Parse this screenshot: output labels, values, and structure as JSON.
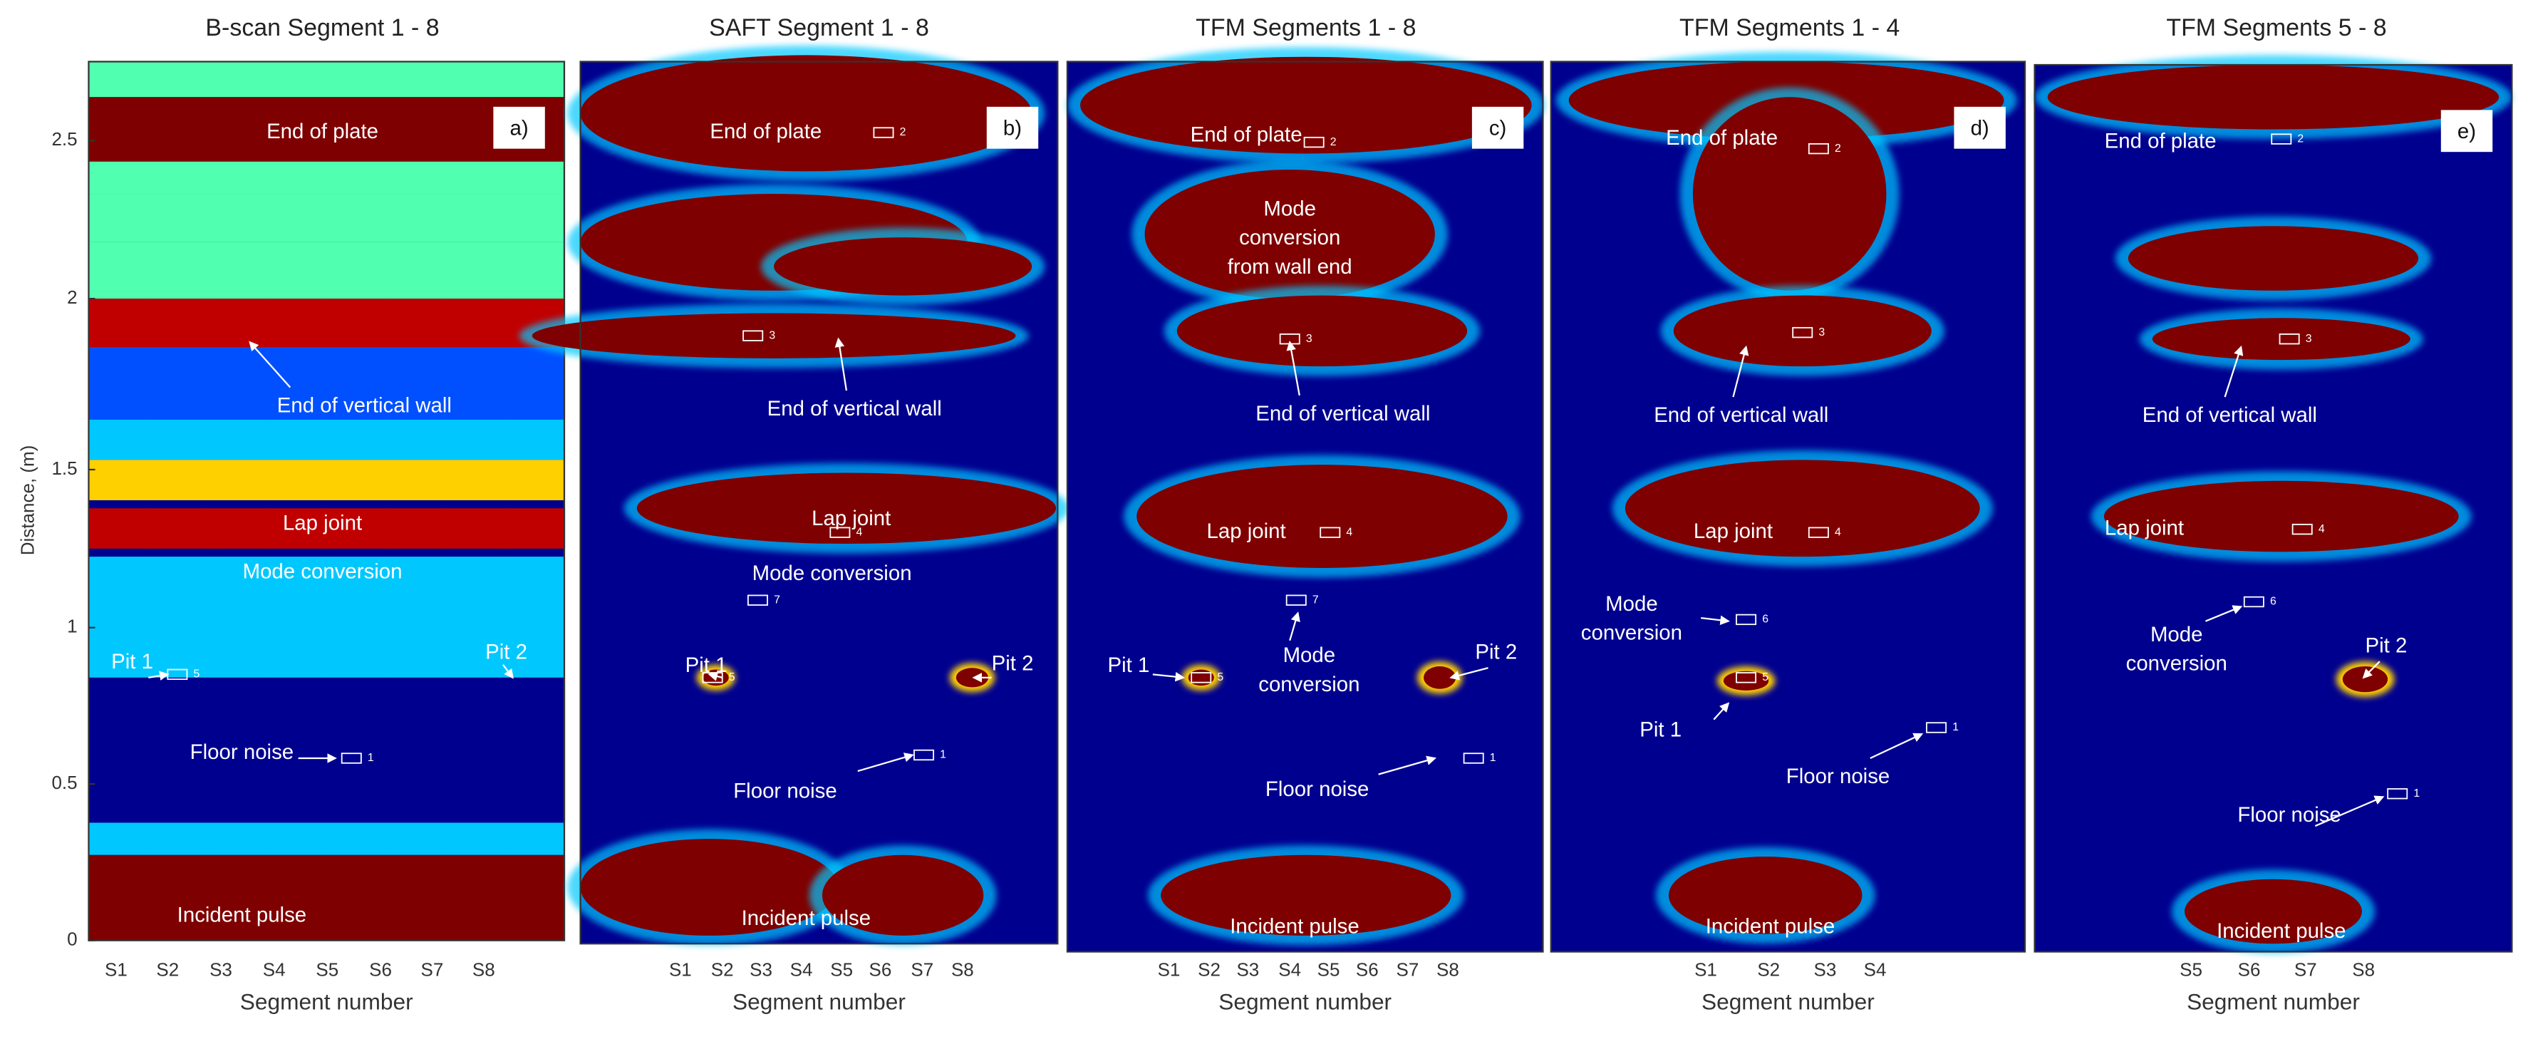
{
  "y_label": "Distance, (m)",
  "y_ticks": [
    "0",
    "0.5",
    "1",
    "1.5",
    "2",
    "2.5"
  ],
  "panels": [
    {
      "title": "B-scan Segment 1 - 8",
      "panel_label": "a)",
      "x_label": "Segment number",
      "categories": [
        "S1",
        "S2",
        "S3",
        "S4",
        "S5",
        "S6",
        "S7",
        "S8"
      ],
      "annotations": [
        [
          "End of plate"
        ],
        [
          "End of vertical wall"
        ],
        [
          "Lap joint"
        ],
        [
          "Mode conversion"
        ],
        [
          "Pit 1"
        ],
        [
          "Pit 2"
        ],
        [
          "Floor noise"
        ],
        [
          "Incident pulse"
        ]
      ],
      "markers": [
        "5",
        "1"
      ]
    },
    {
      "title": "SAFT Segment 1 - 8",
      "panel_label": "b)",
      "x_label": "Segment number",
      "categories": [
        "S1",
        "S2",
        "S3",
        "S4",
        "S5",
        "S6",
        "S7",
        "S8"
      ],
      "annotations": [
        [
          "End of plate"
        ],
        [
          "End of vertical wall"
        ],
        [
          "Lap joint"
        ],
        [
          "Mode conversion"
        ],
        [
          "Pit 1"
        ],
        [
          "Pit 2"
        ],
        [
          "Floor noise"
        ],
        [
          "Incident pulse"
        ]
      ],
      "markers": [
        "2",
        "3",
        "4",
        "7",
        "5",
        "1"
      ]
    },
    {
      "title": "TFM Segments 1 - 8",
      "panel_label": "c)",
      "x_label": "Segment number",
      "categories": [
        "S1",
        "S2",
        "S3",
        "S4",
        "S5",
        "S6",
        "S7",
        "S8"
      ],
      "annotations": [
        [
          "End of plate"
        ],
        [
          "Mode",
          "conversion",
          "from wall end"
        ],
        [
          "End of vertical wall"
        ],
        [
          "Lap joint"
        ],
        [
          "Mode",
          "conversion"
        ],
        [
          "Pit 1"
        ],
        [
          "Pit 2"
        ],
        [
          "Floor noise"
        ],
        [
          "Incident pulse"
        ]
      ],
      "markers": [
        "2",
        "3",
        "4",
        "7",
        "5",
        "1"
      ]
    },
    {
      "title": "TFM Segments 1 - 4",
      "panel_label": "d)",
      "x_label": "Segment number",
      "categories": [
        "S1",
        "S2",
        "S3",
        "S4"
      ],
      "annotations": [
        [
          "End of plate"
        ],
        [
          "End of vertical wall"
        ],
        [
          "Lap joint"
        ],
        [
          "Mode",
          "conversion"
        ],
        [
          "Pit 1"
        ],
        [
          "Floor noise"
        ],
        [
          "Incident pulse"
        ]
      ],
      "markers": [
        "2",
        "3",
        "4",
        "6",
        "5",
        "1"
      ]
    },
    {
      "title": "TFM Segments 5 - 8",
      "panel_label": "e)",
      "x_label": "Segment number",
      "categories": [
        "S5",
        "S6",
        "S7",
        "S8"
      ],
      "annotations": [
        [
          "End of plate"
        ],
        [
          "End of vertical wall"
        ],
        [
          "Lap joint"
        ],
        [
          "Mode",
          "conversion"
        ],
        [
          "Pit 2"
        ],
        [
          "Floor noise"
        ],
        [
          "Incident pulse"
        ]
      ],
      "markers": [
        "2",
        "3",
        "4",
        "6",
        "1"
      ]
    }
  ]
}
